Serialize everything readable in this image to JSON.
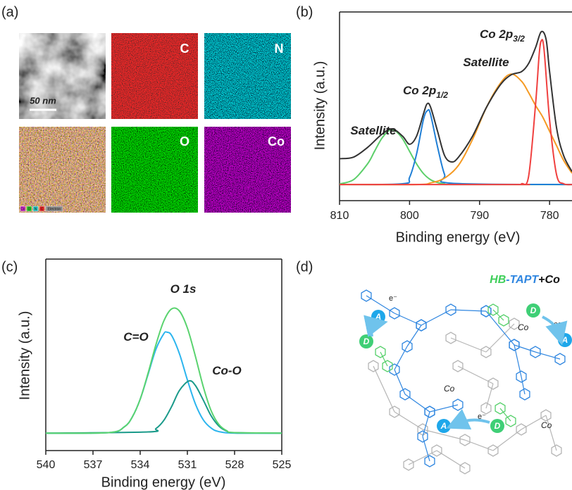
{
  "panel_labels": [
    "(a)",
    "(b)",
    "(c)",
    "(d)"
  ],
  "mapping": {
    "element_labels": [
      "C",
      "N",
      "O",
      "Co"
    ],
    "scale_bar": "50 nm",
    "overlay_legend": [
      "Co",
      "O",
      "N",
      "C",
      "Electron"
    ]
  },
  "chart_data": [
    {
      "type": "line",
      "x_label": "Binding energy (eV)",
      "y_label": "Intensity (a.u.)",
      "xlim": [
        810,
        776.8
      ],
      "xticks": [
        810,
        800,
        790,
        780
      ],
      "ylim": [
        -10,
        107
      ],
      "series": [
        {
          "color": "#5ccf6a",
          "x": [
            810,
            808,
            806,
            805,
            804,
            803,
            802.5,
            802,
            801,
            800,
            799,
            798,
            797,
            796,
            795,
            794,
            776.8
          ],
          "values": [
            0.4,
            3.0,
            12.8,
            20.6,
            28.4,
            33.3,
            34,
            33.3,
            28.4,
            20.6,
            12.8,
            6.7,
            3.0,
            1.2,
            0.4,
            0,
            0
          ]
        },
        {
          "color": "#1f7fd6",
          "x": [
            810,
            801,
            800,
            799,
            798,
            797.4,
            797,
            796,
            795,
            794,
            776.8
          ],
          "values": [
            0,
            0.5,
            4.4,
            18.9,
            40.6,
            46,
            43.5,
            23.3,
            6.2,
            0.8,
            0
          ]
        },
        {
          "color": "#f59a23",
          "x": [
            810,
            799,
            797,
            795,
            793,
            791,
            789,
            787,
            785.5,
            784,
            783,
            782,
            781,
            780,
            779,
            778,
            776.8
          ],
          "values": [
            0,
            0,
            1,
            4,
            12,
            28,
            48,
            63,
            68.5,
            64,
            57,
            49,
            42,
            33,
            24,
            15,
            7
          ]
        },
        {
          "color": "#f0403f",
          "x": [
            810,
            785,
            784,
            783,
            782,
            781.5,
            781.2,
            780.8,
            780,
            779,
            778,
            776.8
          ],
          "values": [
            0,
            0,
            0.5,
            5,
            50,
            80,
            89,
            84,
            40,
            6,
            0.5,
            0
          ]
        },
        {
          "color": "#333333",
          "x": [
            810,
            808,
            806,
            804,
            802.5,
            801,
            800,
            799,
            798,
            797.5,
            797,
            796,
            795,
            794,
            793,
            791,
            789,
            787,
            785.5,
            784,
            783,
            782,
            781.2,
            780.5,
            780,
            779,
            778,
            776.8
          ],
          "values": [
            16,
            17,
            23,
            31,
            34.5,
            30,
            25,
            30,
            44,
            50,
            48,
            33,
            18,
            14,
            17,
            30,
            48,
            62,
            68,
            70,
            75,
            85,
            94.7,
            90,
            70,
            35,
            18,
            8
          ]
        }
      ],
      "annotations": [
        {
          "text": "Satellite",
          "color": "#8c8c8c"
        },
        {
          "text": "Co 2p",
          "sub": "1/2",
          "color": "#1f7fd6"
        },
        {
          "text": "Satellite",
          "color": "#8c8c8c"
        },
        {
          "text": "Co 2p",
          "sub": "3/2",
          "color": "#f0403f"
        }
      ]
    },
    {
      "type": "line",
      "x_label": "Binding energy (eV)",
      "y_label": "Intensity (a.u.)",
      "xlim": [
        540,
        525
      ],
      "xticks": [
        540,
        537,
        534,
        531,
        528,
        525
      ],
      "ylim": [
        -10,
        100
      ],
      "series": [
        {
          "color": "#2cb5ee",
          "x": [
            540,
            536,
            535,
            534.5,
            534,
            533.5,
            533,
            532.5,
            532.3,
            532,
            531.5,
            531,
            530.5,
            530,
            529.5,
            529,
            528,
            525
          ],
          "values": [
            0,
            0.3,
            3.7,
            9.3,
            19.5,
            33.7,
            48.2,
            57.1,
            58,
            56.1,
            45.5,
            30.6,
            17,
            7.8,
            3,
            0.9,
            0,
            0
          ]
        },
        {
          "color": "#1a9a8a",
          "x": [
            540,
            533.5,
            533,
            532.5,
            532,
            531.5,
            530.9,
            530.5,
            530,
            529.5,
            529,
            528.5,
            528,
            525
          ],
          "values": [
            0,
            0.7,
            2.6,
            7.3,
            15.3,
            24.6,
            30,
            27.5,
            19.2,
            10.1,
            4.1,
            1.2,
            0.3,
            0
          ]
        },
        {
          "color": "#5ad36f",
          "x": [
            540,
            536,
            535,
            534.5,
            534,
            533.5,
            533,
            532.5,
            532,
            531.5,
            531,
            530.5,
            530,
            529.5,
            529,
            528.5,
            528,
            525
          ],
          "values": [
            0,
            0.3,
            3.7,
            9.3,
            19.5,
            34.4,
            50.8,
            64.4,
            71.4,
            70.1,
            60.4,
            44.5,
            27,
            13.1,
            5,
            1.4,
            0.3,
            0
          ]
        }
      ],
      "annotations": [
        {
          "text": "O 1s",
          "color": "#5ad36f"
        },
        {
          "text": "C=O",
          "color": "#2cb5ee"
        },
        {
          "text": "Co-O",
          "color": "#1a9a8a"
        }
      ]
    }
  ],
  "scheme": {
    "title": [
      "HB",
      "-TAPT",
      "+Co"
    ],
    "acceptor": [
      "A",
      "A",
      "A"
    ],
    "donor": [
      "D",
      "D",
      "D"
    ],
    "electron": [
      "e⁻",
      "e⁻",
      "e⁻"
    ],
    "cobalt": [
      "Co",
      "Co",
      "Co"
    ]
  }
}
